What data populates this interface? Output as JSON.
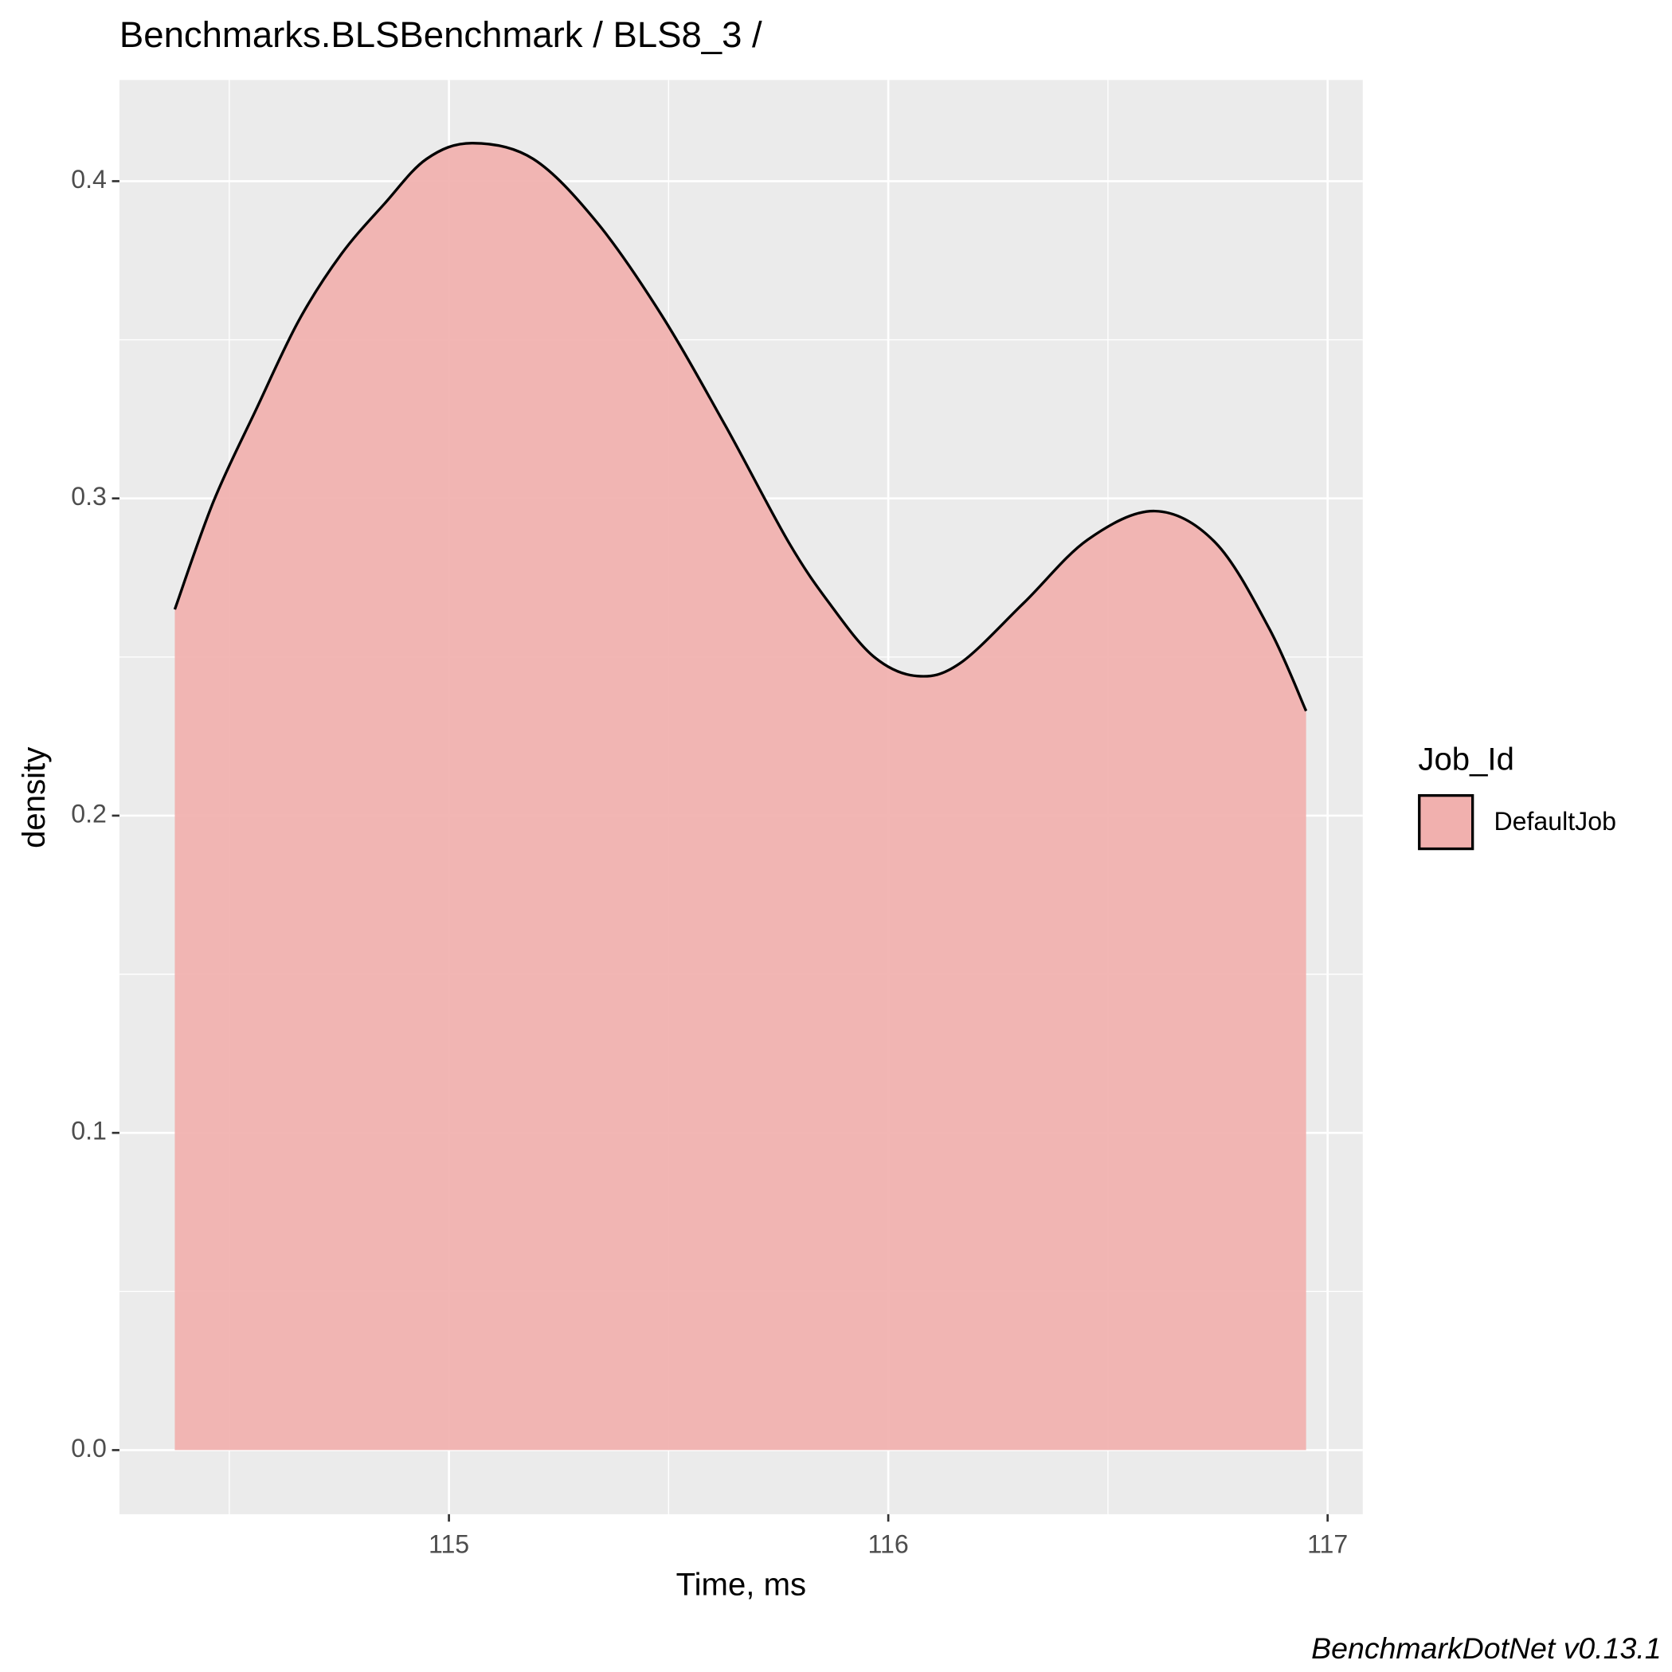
{
  "chart_data": {
    "type": "density",
    "title": "Benchmarks.BLSBenchmark / BLS8_3 /",
    "x_label": "Time, ms",
    "y_label": "density",
    "caption": "BenchmarkDotNet v0.13.1",
    "legend_title": "Job_Id",
    "legend_position": "right",
    "grid": true,
    "background": "#ebebeb",
    "x": [
      114.376,
      114.464,
      114.561,
      114.658,
      114.755,
      114.854,
      114.949,
      115.053,
      115.192,
      115.337,
      115.483,
      115.629,
      115.774,
      115.871,
      115.968,
      116.066,
      116.163,
      116.308,
      116.454,
      116.607,
      116.745,
      116.867,
      116.951
    ],
    "series": [
      {
        "name": "DefaultJob",
        "color": "#f1b0ae",
        "line_color": "#000000",
        "values": [
          0.265,
          0.299,
          0.328,
          0.356,
          0.377,
          0.393,
          0.407,
          0.412,
          0.407,
          0.387,
          0.358,
          0.323,
          0.286,
          0.266,
          0.25,
          0.244,
          0.248,
          0.267,
          0.287,
          0.296,
          0.286,
          0.259,
          0.233
        ]
      }
    ],
    "xlim": [
      114.25,
      117.08
    ],
    "ylim": [
      -0.0202,
      0.4319
    ],
    "xticks": [
      115,
      116,
      117
    ],
    "yticks": [
      {
        "value": 0,
        "label": "0.0"
      },
      0.1,
      0.2,
      0.3,
      0.4
    ],
    "xminor": [
      114.5,
      115.5,
      116.5
    ],
    "yminor": [
      0.05,
      0.15,
      0.25,
      0.35
    ]
  }
}
